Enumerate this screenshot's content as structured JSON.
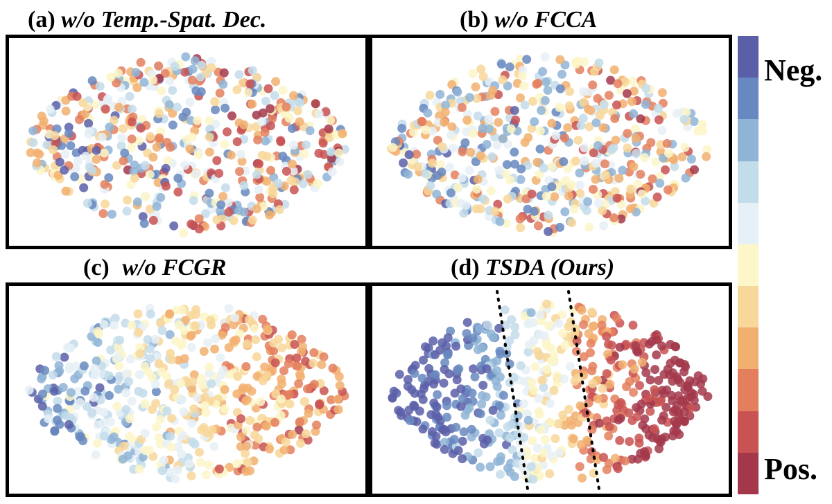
{
  "chart_data": [
    {
      "type": "scatter",
      "panel_label": "(a)",
      "title": "w/o Temp.-Spat. Dec.",
      "description_of_mixing": "mixed",
      "seed": 11,
      "n_points": 560,
      "separation": 0.15
    },
    {
      "type": "scatter",
      "panel_label": "(b)",
      "title": "w/o FCCA",
      "description_of_mixing": "mixed",
      "seed": 23,
      "n_points": 560,
      "separation": 0.25
    },
    {
      "type": "scatter",
      "panel_label": "(c)",
      "title": "w/o FCGR",
      "description_of_mixing": "partially separated",
      "seed": 37,
      "n_points": 600,
      "separation": 0.65
    },
    {
      "type": "scatter",
      "panel_label": "(d)",
      "title": "TSDA (Ours)",
      "description_of_mixing": "well separated",
      "seed": 51,
      "n_points": 620,
      "separation": 1.0,
      "has_divider_lines": true
    }
  ],
  "colorbar": {
    "colors": [
      "#5a5fa8",
      "#6788c0",
      "#8fb4d6",
      "#c3dcea",
      "#e6f0f6",
      "#fcf6c8",
      "#f8d79a",
      "#f2b070",
      "#e47f5e",
      "#c95252",
      "#a3384b"
    ],
    "top_label": "Neg.",
    "bottom_label": "Pos."
  }
}
